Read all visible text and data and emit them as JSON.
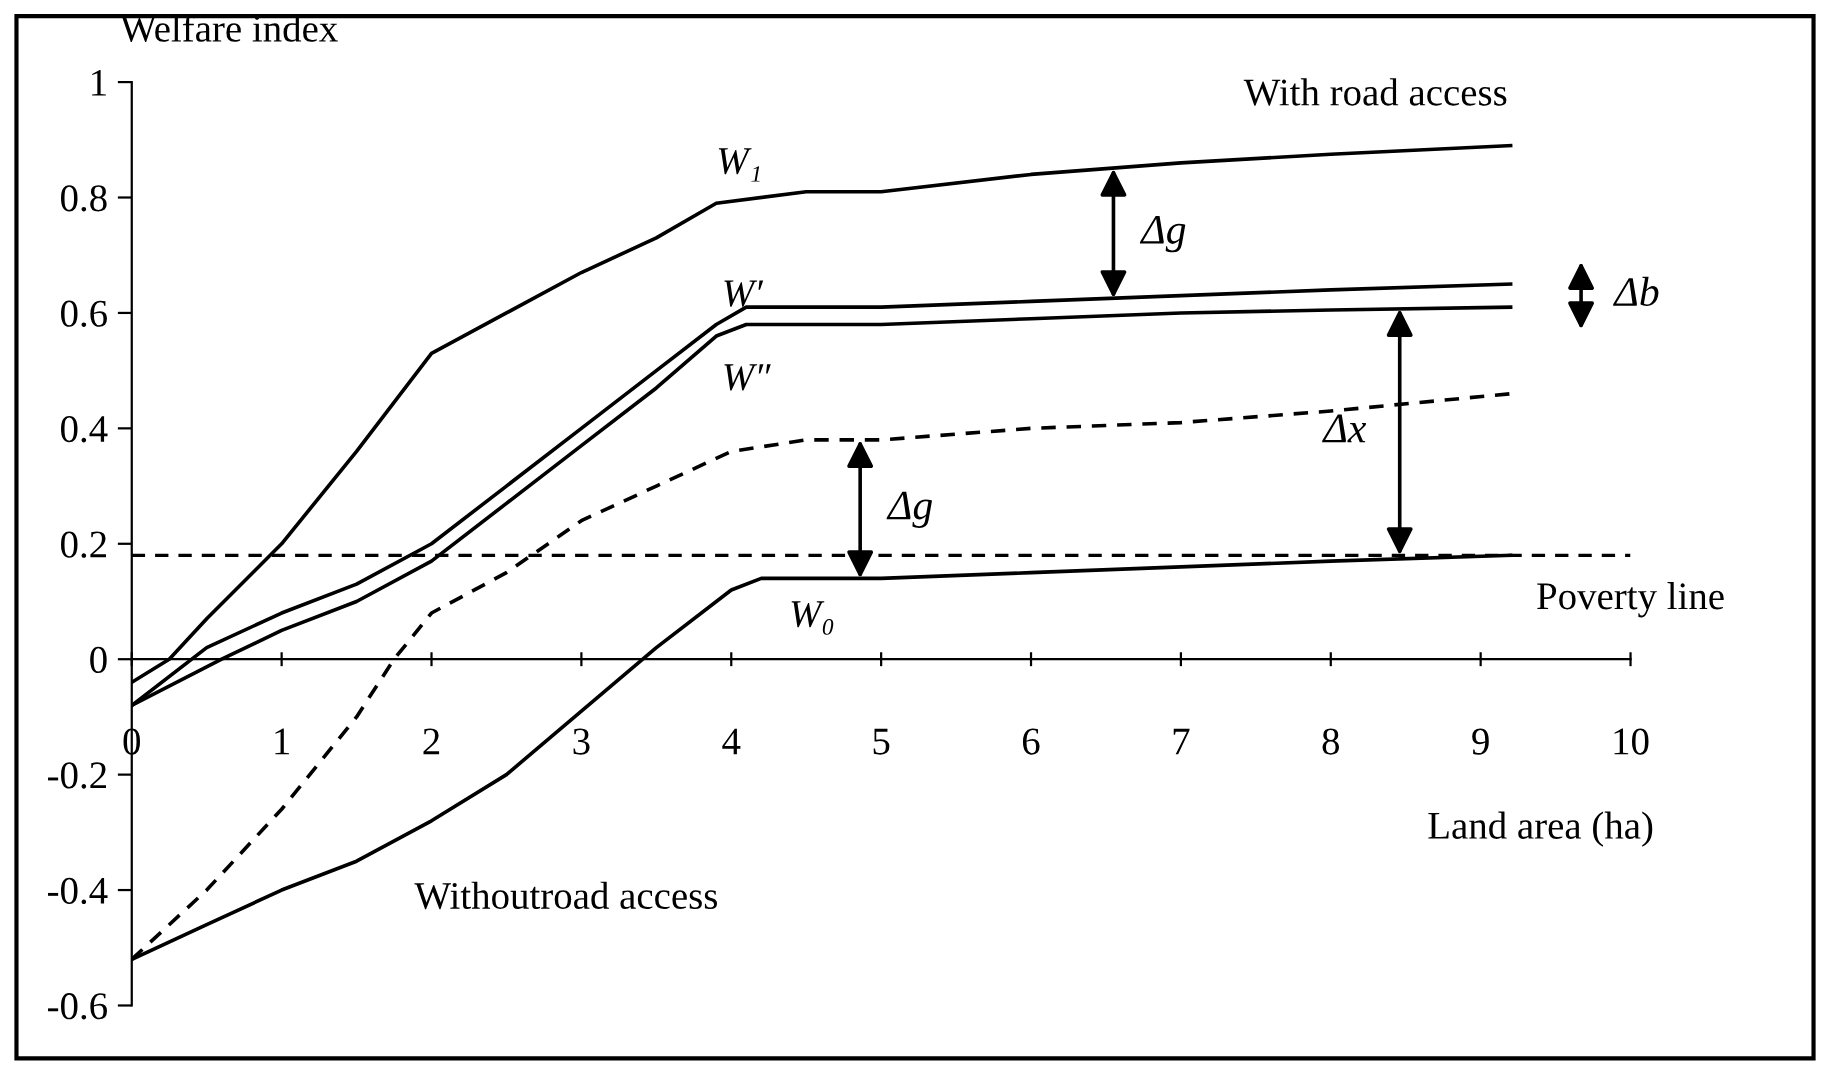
{
  "chart_data": {
    "type": "line",
    "xlabel": "Land area (ha)",
    "ylabel": "Welfare index",
    "xlim": [
      0,
      10
    ],
    "ylim": [
      -0.6,
      1
    ],
    "xticks": [
      0,
      1,
      2,
      3,
      4,
      5,
      6,
      7,
      8,
      9,
      10
    ],
    "yticks": [
      -0.6,
      -0.4,
      -0.2,
      0,
      0.2,
      0.4,
      0.6,
      0.8,
      1
    ],
    "grid": false,
    "marker": "none",
    "series": [
      {
        "name": "W₁",
        "color": "#000000",
        "line_style": "solid",
        "x": [
          0,
          0.25,
          0.5,
          1,
          1.5,
          2,
          2.5,
          3,
          3.5,
          3.9,
          4.5,
          5,
          6,
          7,
          8,
          9.2
        ],
        "values": [
          -0.04,
          0.0,
          0.07,
          0.2,
          0.36,
          0.53,
          0.6,
          0.67,
          0.73,
          0.79,
          0.81,
          0.81,
          0.84,
          0.86,
          0.875,
          0.89
        ]
      },
      {
        "name": "W′",
        "color": "#000000",
        "line_style": "solid",
        "x": [
          0,
          0.5,
          1,
          1.5,
          2,
          2.5,
          3,
          3.5,
          3.9,
          4.1,
          5,
          6,
          7,
          8,
          9.2
        ],
        "values": [
          -0.08,
          0.02,
          0.08,
          0.13,
          0.2,
          0.3,
          0.4,
          0.5,
          0.58,
          0.61,
          0.61,
          0.62,
          0.63,
          0.64,
          0.65
        ]
      },
      {
        "name": "W″",
        "color": "#000000",
        "line_style": "solid",
        "x": [
          0,
          0.6,
          1,
          1.5,
          2,
          2.5,
          3,
          3.5,
          3.9,
          4.1,
          5,
          6,
          7,
          8,
          9.2
        ],
        "values": [
          -0.08,
          0,
          0.05,
          0.1,
          0.17,
          0.27,
          0.37,
          0.47,
          0.56,
          0.58,
          0.58,
          0.59,
          0.6,
          0.605,
          0.61
        ]
      },
      {
        "color": "#000000",
        "line_style": "dashed",
        "x": [
          0,
          0.5,
          1,
          1.5,
          1.75,
          2,
          2.5,
          3,
          3.5,
          4,
          4.5,
          5,
          6,
          7,
          8,
          9.2
        ],
        "values": [
          -0.52,
          -0.4,
          -0.26,
          -0.1,
          0,
          0.08,
          0.15,
          0.24,
          0.3,
          0.36,
          0.38,
          0.38,
          0.4,
          0.41,
          0.43,
          0.46
        ]
      },
      {
        "name": "W₀",
        "color": "#000000",
        "line_style": "solid",
        "x": [
          0,
          0.5,
          1,
          1.5,
          2,
          2.5,
          3,
          3.5,
          4,
          4.2,
          5,
          6,
          7,
          8,
          9.2
        ],
        "values": [
          -0.52,
          -0.46,
          -0.4,
          -0.35,
          -0.28,
          -0.2,
          -0.09,
          0.02,
          0.12,
          0.14,
          0.14,
          0.15,
          0.16,
          0.17,
          0.18
        ]
      }
    ],
    "ref_lines": [
      {
        "axis": "y",
        "value": 0.18,
        "label": "Poverty line",
        "color": "#000000",
        "line_style": "dashed"
      }
    ],
    "annotations": [
      "With road access",
      "Withoutroad access",
      {
        "text": "Δg",
        "x": 6.55,
        "y": 0.85
      },
      {
        "text": "Δg",
        "x": 4.86,
        "y": 0.38
      },
      {
        "text": "Δx",
        "x": 8.46,
        "y": 0.607
      },
      "Δb"
    ]
  }
}
